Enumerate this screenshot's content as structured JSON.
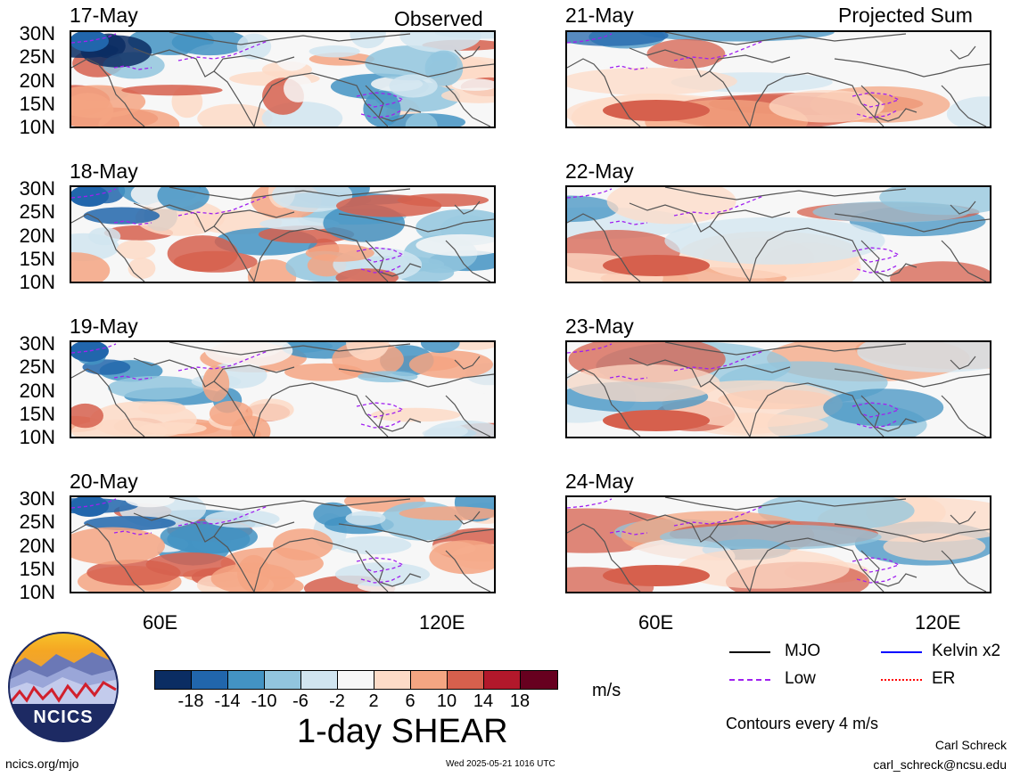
{
  "columns": {
    "left_title": "Observed",
    "right_title": "Projected Sum"
  },
  "dates": {
    "left": [
      "17-May",
      "18-May",
      "19-May",
      "20-May"
    ],
    "right": [
      "21-May",
      "22-May",
      "23-May",
      "24-May"
    ]
  },
  "lat_labels": [
    "30N",
    "25N",
    "20N",
    "15N",
    "10N"
  ],
  "lon_labels": [
    "60E",
    "120E"
  ],
  "colorbar": {
    "colors": [
      "#0b2d63",
      "#2166ac",
      "#4393c3",
      "#92c5de",
      "#d1e5f0",
      "#f7f7f7",
      "#fddbc7",
      "#f4a582",
      "#d6604d",
      "#b2182b",
      "#67001f"
    ],
    "labels": [
      "-18",
      "-14",
      "-10",
      "-6",
      "-2",
      "2",
      "6",
      "10",
      "14",
      "18"
    ],
    "unit": "m/s",
    "title": "1-day SHEAR"
  },
  "legend": {
    "items": [
      {
        "label": "MJO",
        "color": "#000000"
      },
      {
        "label": "Kelvin x2",
        "color": "#0000ff"
      },
      {
        "label": "Low",
        "color": "#a020f0"
      },
      {
        "label": "ER",
        "color": "#ff0000"
      }
    ],
    "contours_note": "Contours every 4 m/s"
  },
  "logo": {
    "text": "NCICS"
  },
  "footer": {
    "left": "ncics.org/mjo",
    "center": "Wed 2025-05-21 1016 UTC",
    "author": "Carl Schreck",
    "email": "carl_schreck@ncsu.edu"
  }
}
